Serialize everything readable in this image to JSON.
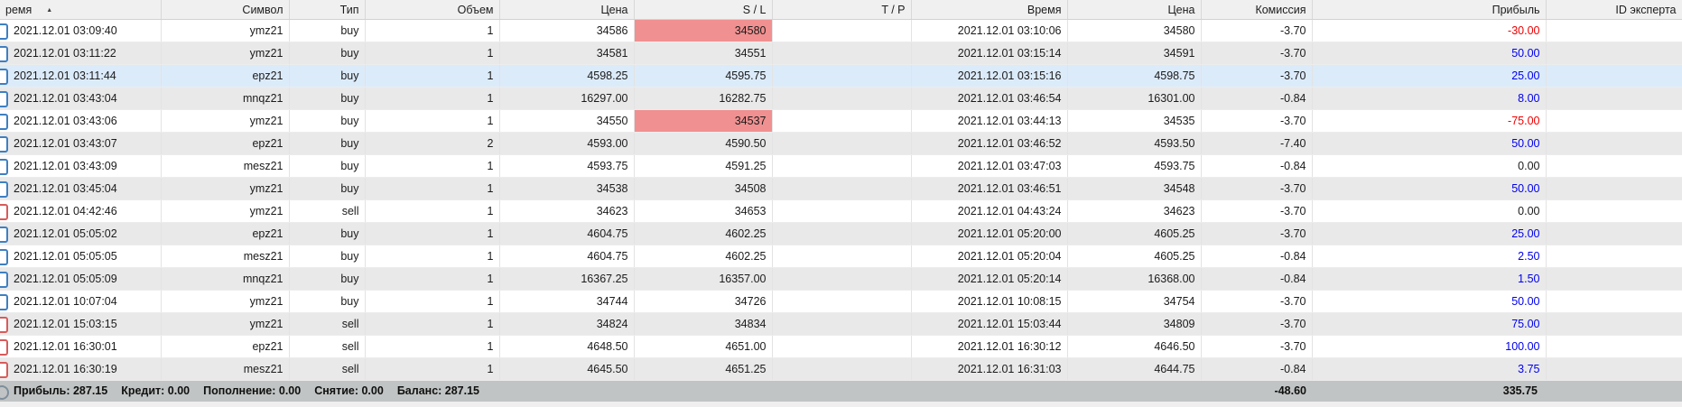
{
  "colors": {
    "profit_positive": "#0000ee",
    "profit_negative": "#ee0000",
    "profit_zero": "#1b1b1b",
    "sl_hit_cell_bg": "#f19090",
    "selected_row_bg": "#dcebfa",
    "buy_marker": "#3e7fc1",
    "sell_marker": "#d75b5b"
  },
  "table": {
    "columns": [
      {
        "label": "ремя",
        "sorted": "asc"
      },
      {
        "label": "Символ"
      },
      {
        "label": "Тип"
      },
      {
        "label": "Объем"
      },
      {
        "label": "Цена"
      },
      {
        "label": "S / L"
      },
      {
        "label": "T / P"
      },
      {
        "label": "Время"
      },
      {
        "label": "Цена"
      },
      {
        "label": "Комиссия"
      },
      {
        "label": "Прибыль"
      },
      {
        "label": "ID эксперта"
      }
    ],
    "rows": [
      {
        "open_time": "2021.12.01 03:09:40",
        "symbol": "ymz21",
        "type": "buy",
        "volume": "1",
        "open_price": "34586",
        "sl": "34580",
        "sl_hit": true,
        "tp": "",
        "close_time": "2021.12.01 03:10:06",
        "close_price": "34580",
        "commission": "-3.70",
        "profit": "-30.00",
        "expert_id": "",
        "selected": false
      },
      {
        "open_time": "2021.12.01 03:11:22",
        "symbol": "ymz21",
        "type": "buy",
        "volume": "1",
        "open_price": "34581",
        "sl": "34551",
        "sl_hit": false,
        "tp": "",
        "close_time": "2021.12.01 03:15:14",
        "close_price": "34591",
        "commission": "-3.70",
        "profit": "50.00",
        "expert_id": "",
        "selected": false
      },
      {
        "open_time": "2021.12.01 03:11:44",
        "symbol": "epz21",
        "type": "buy",
        "volume": "1",
        "open_price": "4598.25",
        "sl": "4595.75",
        "sl_hit": false,
        "tp": "",
        "close_time": "2021.12.01 03:15:16",
        "close_price": "4598.75",
        "commission": "-3.70",
        "profit": "25.00",
        "expert_id": "",
        "selected": true
      },
      {
        "open_time": "2021.12.01 03:43:04",
        "symbol": "mnqz21",
        "type": "buy",
        "volume": "1",
        "open_price": "16297.00",
        "sl": "16282.75",
        "sl_hit": false,
        "tp": "",
        "close_time": "2021.12.01 03:46:54",
        "close_price": "16301.00",
        "commission": "-0.84",
        "profit": "8.00",
        "expert_id": "",
        "selected": false
      },
      {
        "open_time": "2021.12.01 03:43:06",
        "symbol": "ymz21",
        "type": "buy",
        "volume": "1",
        "open_price": "34550",
        "sl": "34537",
        "sl_hit": true,
        "tp": "",
        "close_time": "2021.12.01 03:44:13",
        "close_price": "34535",
        "commission": "-3.70",
        "profit": "-75.00",
        "expert_id": "",
        "selected": false
      },
      {
        "open_time": "2021.12.01 03:43:07",
        "symbol": "epz21",
        "type": "buy",
        "volume": "2",
        "open_price": "4593.00",
        "sl": "4590.50",
        "sl_hit": false,
        "tp": "",
        "close_time": "2021.12.01 03:46:52",
        "close_price": "4593.50",
        "commission": "-7.40",
        "profit": "50.00",
        "expert_id": "",
        "selected": false
      },
      {
        "open_time": "2021.12.01 03:43:09",
        "symbol": "mesz21",
        "type": "buy",
        "volume": "1",
        "open_price": "4593.75",
        "sl": "4591.25",
        "sl_hit": false,
        "tp": "",
        "close_time": "2021.12.01 03:47:03",
        "close_price": "4593.75",
        "commission": "-0.84",
        "profit": "0.00",
        "expert_id": "",
        "selected": false
      },
      {
        "open_time": "2021.12.01 03:45:04",
        "symbol": "ymz21",
        "type": "buy",
        "volume": "1",
        "open_price": "34538",
        "sl": "34508",
        "sl_hit": false,
        "tp": "",
        "close_time": "2021.12.01 03:46:51",
        "close_price": "34548",
        "commission": "-3.70",
        "profit": "50.00",
        "expert_id": "",
        "selected": false
      },
      {
        "open_time": "2021.12.01 04:42:46",
        "symbol": "ymz21",
        "type": "sell",
        "volume": "1",
        "open_price": "34623",
        "sl": "34653",
        "sl_hit": false,
        "tp": "",
        "close_time": "2021.12.01 04:43:24",
        "close_price": "34623",
        "commission": "-3.70",
        "profit": "0.00",
        "expert_id": "",
        "selected": false
      },
      {
        "open_time": "2021.12.01 05:05:02",
        "symbol": "epz21",
        "type": "buy",
        "volume": "1",
        "open_price": "4604.75",
        "sl": "4602.25",
        "sl_hit": false,
        "tp": "",
        "close_time": "2021.12.01 05:20:00",
        "close_price": "4605.25",
        "commission": "-3.70",
        "profit": "25.00",
        "expert_id": "",
        "selected": false
      },
      {
        "open_time": "2021.12.01 05:05:05",
        "symbol": "mesz21",
        "type": "buy",
        "volume": "1",
        "open_price": "4604.75",
        "sl": "4602.25",
        "sl_hit": false,
        "tp": "",
        "close_time": "2021.12.01 05:20:04",
        "close_price": "4605.25",
        "commission": "-0.84",
        "profit": "2.50",
        "expert_id": "",
        "selected": false
      },
      {
        "open_time": "2021.12.01 05:05:09",
        "symbol": "mnqz21",
        "type": "buy",
        "volume": "1",
        "open_price": "16367.25",
        "sl": "16357.00",
        "sl_hit": false,
        "tp": "",
        "close_time": "2021.12.01 05:20:14",
        "close_price": "16368.00",
        "commission": "-0.84",
        "profit": "1.50",
        "expert_id": "",
        "selected": false
      },
      {
        "open_time": "2021.12.01 10:07:04",
        "symbol": "ymz21",
        "type": "buy",
        "volume": "1",
        "open_price": "34744",
        "sl": "34726",
        "sl_hit": false,
        "tp": "",
        "close_time": "2021.12.01 10:08:15",
        "close_price": "34754",
        "commission": "-3.70",
        "profit": "50.00",
        "expert_id": "",
        "selected": false
      },
      {
        "open_time": "2021.12.01 15:03:15",
        "symbol": "ymz21",
        "type": "sell",
        "volume": "1",
        "open_price": "34824",
        "sl": "34834",
        "sl_hit": false,
        "tp": "",
        "close_time": "2021.12.01 15:03:44",
        "close_price": "34809",
        "commission": "-3.70",
        "profit": "75.00",
        "expert_id": "",
        "selected": false
      },
      {
        "open_time": "2021.12.01 16:30:01",
        "symbol": "epz21",
        "type": "sell",
        "volume": "1",
        "open_price": "4648.50",
        "sl": "4651.00",
        "sl_hit": false,
        "tp": "",
        "close_time": "2021.12.01 16:30:12",
        "close_price": "4646.50",
        "commission": "-3.70",
        "profit": "100.00",
        "expert_id": "",
        "selected": false
      },
      {
        "open_time": "2021.12.01 16:30:19",
        "symbol": "mesz21",
        "type": "sell",
        "volume": "1",
        "open_price": "4645.50",
        "sl": "4651.25",
        "sl_hit": false,
        "tp": "",
        "close_time": "2021.12.01 16:31:03",
        "close_price": "4644.75",
        "commission": "-0.84",
        "profit": "3.75",
        "expert_id": "",
        "selected": false
      }
    ]
  },
  "footer": {
    "segments": [
      {
        "label": "Прибыль:",
        "value": "287.15"
      },
      {
        "label": "Кредит:",
        "value": "0.00"
      },
      {
        "label": "Пополнение:",
        "value": "0.00"
      },
      {
        "label": "Снятие:",
        "value": "0.00"
      },
      {
        "label": "Баланс:",
        "value": "287.15"
      }
    ],
    "total_commission": "-48.60",
    "total_profit": "335.75"
  }
}
